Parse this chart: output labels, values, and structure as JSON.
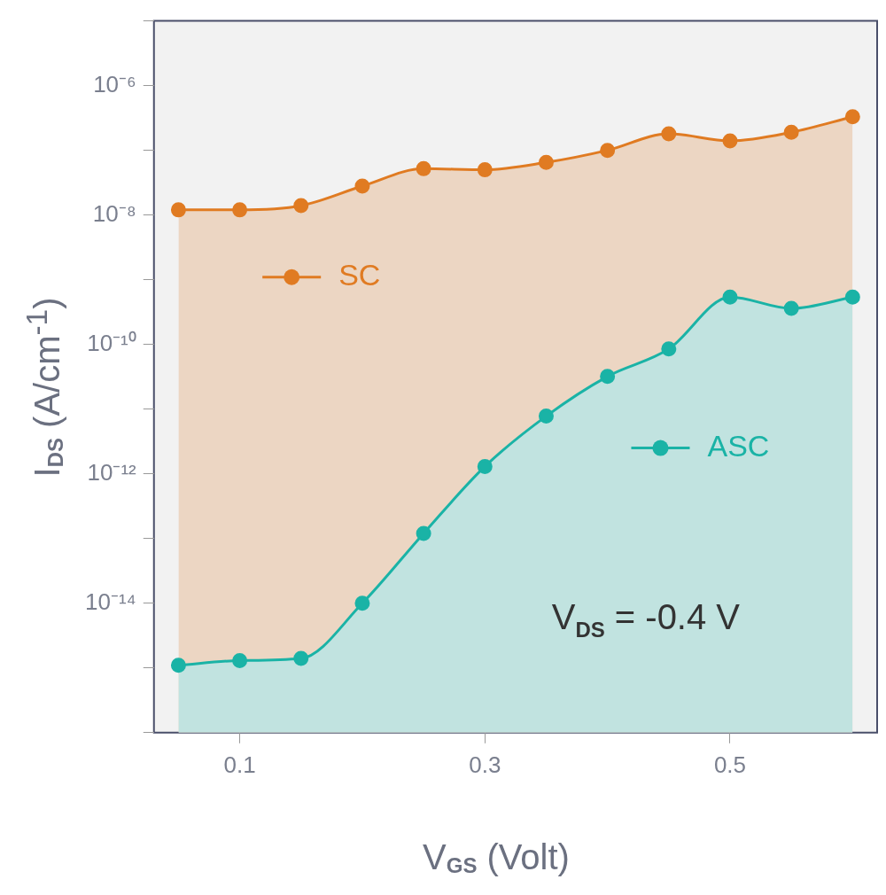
{
  "chart_data": {
    "type": "area",
    "xlabel": "V$_{GS}$  (Volt)",
    "ylabel": "I$_{DS}$  (A/cm$^{-1}$)",
    "x": [
      0.05,
      0.1,
      0.15,
      0.2,
      0.25,
      0.3,
      0.35,
      0.4,
      0.45,
      0.5,
      0.55,
      0.6
    ],
    "series": [
      {
        "name": "SC",
        "color": "#e07b22",
        "values": [
          1.2e-08,
          1.2e-08,
          1.4e-08,
          2.8e-08,
          5.2e-08,
          5e-08,
          6.5e-08,
          1e-07,
          1.8e-07,
          1.4e-07,
          1.9e-07,
          3.3e-07
        ]
      },
      {
        "name": "ASC",
        "color": "#1ab3a6",
        "values": [
          1.1e-15,
          1.3e-15,
          1.4e-15,
          1e-14,
          1.2e-13,
          1.3e-12,
          7.8e-12,
          3.2e-11,
          8.5e-11,
          5.4e-10,
          3.6e-10,
          5.4e-10
        ]
      }
    ],
    "log": "y",
    "xlim": [
      0.03,
      0.62
    ],
    "ylim": [
      1e-16,
      1e-05
    ],
    "xticks": [
      0.1,
      0.3,
      0.5
    ],
    "yticks": [
      {
        "value": 1e-16,
        "label": null
      },
      {
        "value": 1e-15,
        "label": null
      },
      {
        "value": 1e-14,
        "label": "10⁻¹⁴"
      },
      {
        "value": 1e-13,
        "label": null
      },
      {
        "value": 1e-12,
        "label": "10⁻¹²"
      },
      {
        "value": 1e-11,
        "label": null
      },
      {
        "value": 1e-10,
        "label": "10⁻¹⁰"
      },
      {
        "value": 1e-09,
        "label": null
      },
      {
        "value": 1e-08,
        "label": "10⁻⁸"
      },
      {
        "value": 1e-07,
        "label": null
      },
      {
        "value": 1e-06,
        "label": "10⁻⁶"
      },
      {
        "value": 1e-05,
        "label": null
      }
    ],
    "grid": false,
    "legend": "left",
    "marker": "circle",
    "line_style": "solid",
    "annotations": [
      "V$_{DS}$ = -0.4 V"
    ]
  }
}
